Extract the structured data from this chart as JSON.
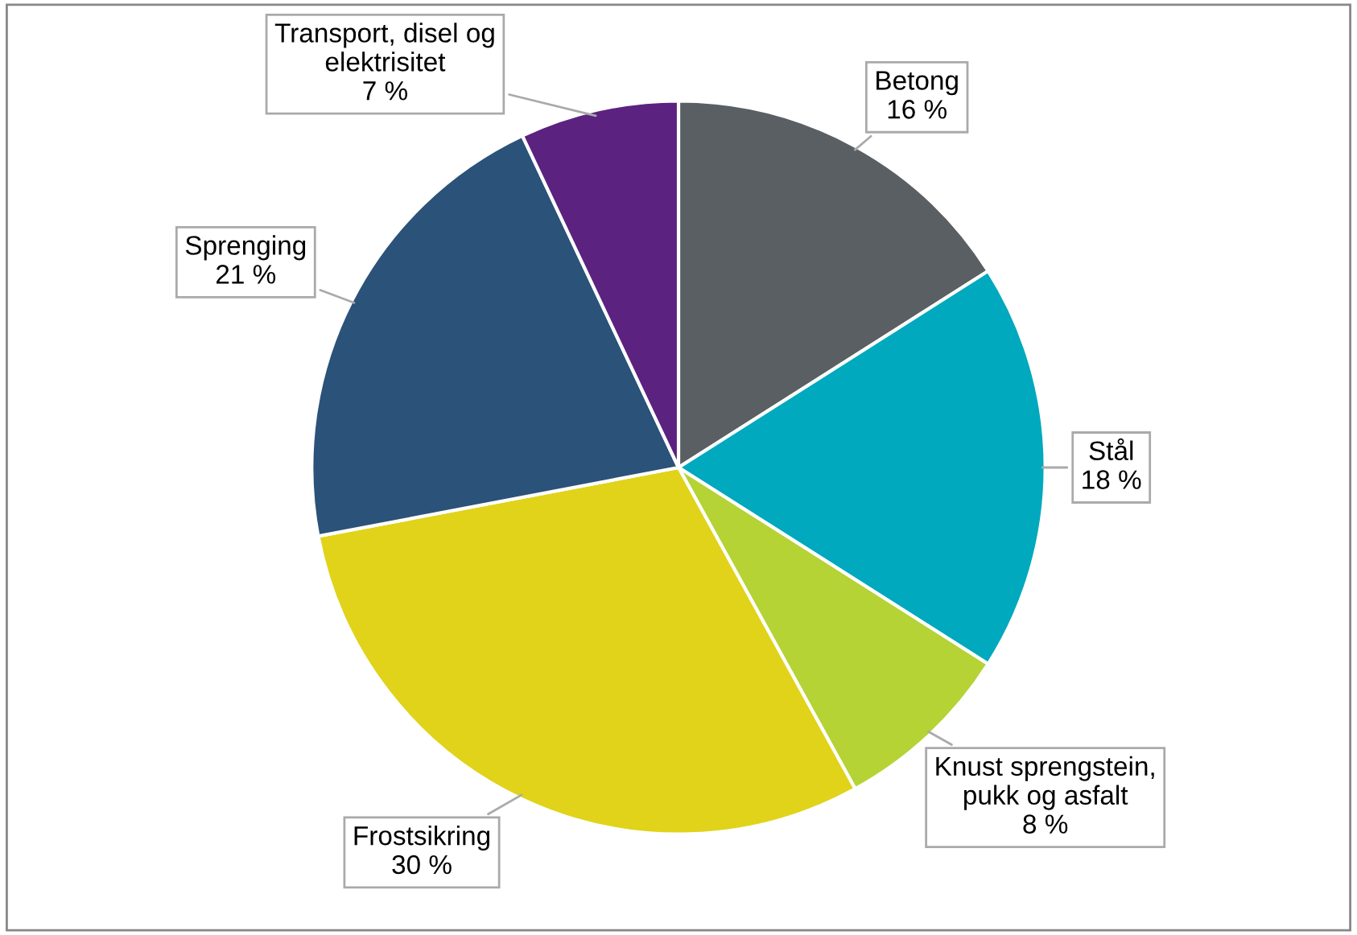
{
  "chart_data": {
    "type": "pie",
    "categories": [
      "Betong",
      "Stål",
      "Knust sprengstein,\npukk og asfalt",
      "Frostsikring",
      "Sprenging",
      "Transport, disel og\nelektrisitet"
    ],
    "values": [
      16,
      18,
      8,
      30,
      21,
      7
    ],
    "colors": [
      "#5a5f63",
      "#00a9bd",
      "#b5d334",
      "#e0d31a",
      "#2b5279",
      "#5b2280"
    ],
    "value_labels": [
      "16 %",
      "18 %",
      "8 %",
      "30 %",
      "21 %",
      "7 %"
    ],
    "legend": false
  }
}
